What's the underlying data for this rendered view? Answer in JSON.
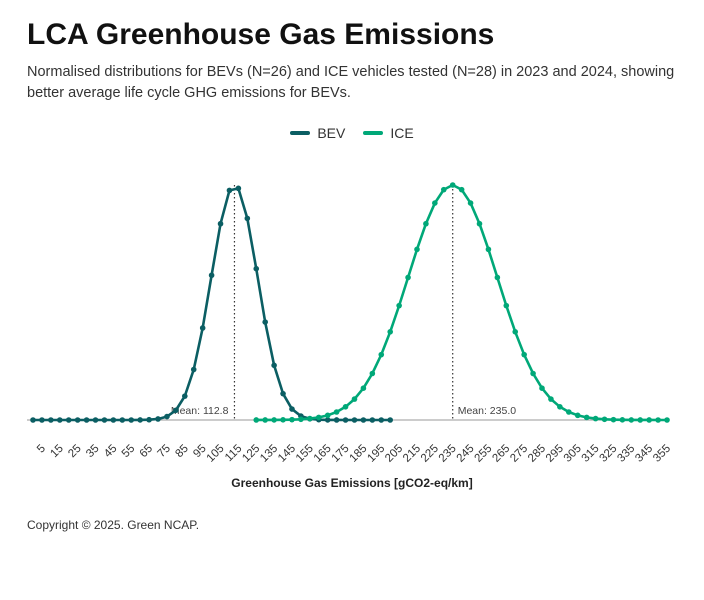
{
  "header": {
    "title": "LCA Greenhouse Gas Emissions",
    "subtitle": "Normalised distributions for BEVs (N=26) and ICE vehicles tested (N=28) in 2023 and 2024, showing better average life cycle GHG emissions for BEVs."
  },
  "footer": {
    "copyright": "Copyright © 2025. Green NCAP."
  },
  "chart_data": {
    "type": "line",
    "title": "LCA Greenhouse Gas Emissions",
    "xlabel": "Greenhouse Gas Emissions [gCO2-eq/km]",
    "ylabel": "",
    "xlim": [
      0,
      360
    ],
    "x_ticks": [
      "5",
      "15",
      "25",
      "35",
      "45",
      "55",
      "65",
      "75",
      "85",
      "95",
      "105",
      "115",
      "125",
      "135",
      "145",
      "155",
      "165",
      "175",
      "185",
      "195",
      "205",
      "215",
      "225",
      "235",
      "245",
      "255",
      "265",
      "275",
      "285",
      "295",
      "305",
      "315",
      "325",
      "335",
      "345",
      "355"
    ],
    "legend": {
      "placement": "top-center"
    },
    "grid": false,
    "series": [
      {
        "name": "BEV",
        "color": "#0b5e63",
        "distribution": "normal",
        "mean": 112.8,
        "sd": 13,
        "x_range": [
          0,
          200
        ],
        "x_step": 5,
        "mean_label": "Mean: 112.8"
      },
      {
        "name": "ICE",
        "color": "#00a878",
        "distribution": "normal",
        "mean": 235.0,
        "sd": 25,
        "x_range": [
          125,
          355
        ],
        "x_step": 5,
        "mean_label": "Mean: 235.0"
      }
    ]
  }
}
